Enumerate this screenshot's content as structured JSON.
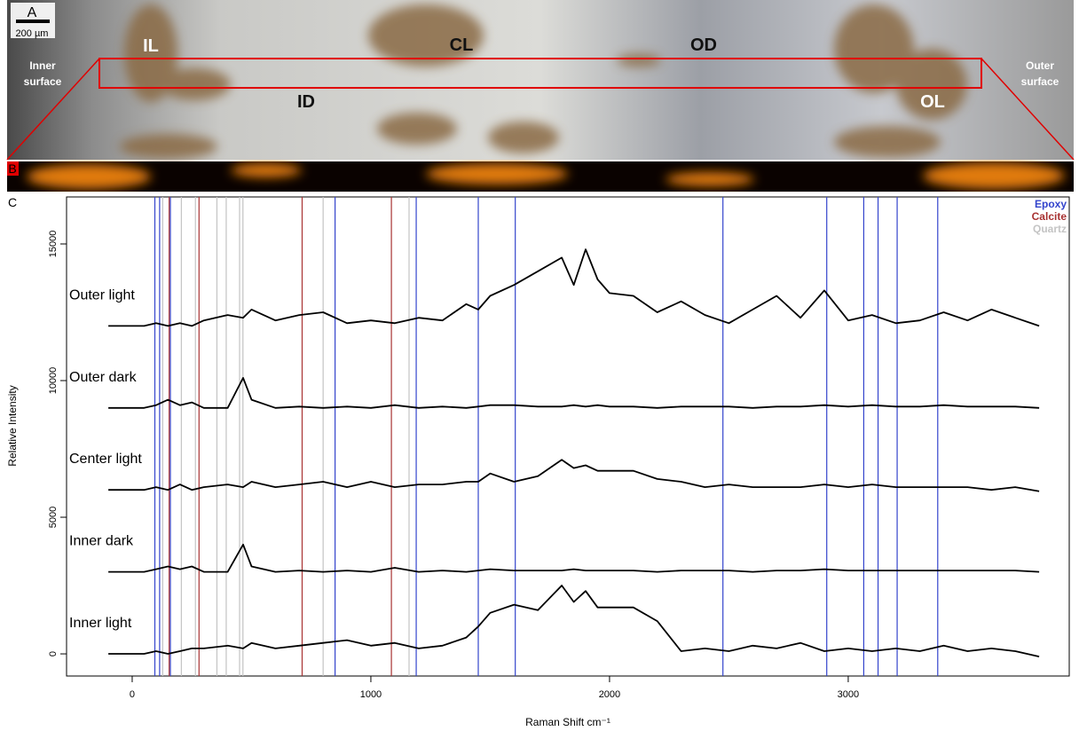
{
  "figure": {
    "panel_a": {
      "label": "A",
      "scale_bar": "200 µm",
      "regions": [
        "IL",
        "CL",
        "OD",
        "ID",
        "OL"
      ],
      "inner_surface": [
        "Inner",
        "surface"
      ],
      "outer_surface": [
        "Outer",
        "surface"
      ]
    },
    "panel_b": {
      "label": "B"
    },
    "panel_c": {
      "label": "C"
    }
  },
  "chart_data": {
    "type": "line",
    "x_label": "Raman Shift cm⁻¹",
    "y_label": "Relative Intensity",
    "xlim": [
      -275,
      3926
    ],
    "ylim": [
      -810,
      16720
    ],
    "xticks": [
      0,
      1000,
      2000,
      3000
    ],
    "yticks": [
      0,
      5000,
      10000,
      15000
    ],
    "x": [
      -100,
      0,
      50,
      100,
      150,
      200,
      250,
      300,
      400,
      465,
      500,
      600,
      700,
      800,
      900,
      1000,
      1100,
      1200,
      1300,
      1400,
      1450,
      1500,
      1600,
      1700,
      1800,
      1850,
      1900,
      1950,
      2000,
      2100,
      2200,
      2300,
      2400,
      2500,
      2600,
      2700,
      2800,
      2900,
      3000,
      3100,
      3200,
      3300,
      3400,
      3500,
      3600,
      3700,
      3800
    ],
    "series": [
      {
        "name": "Outer light",
        "color": "#000000",
        "values": [
          12000,
          12000,
          12000,
          12100,
          12000,
          12100,
          12000,
          12200,
          12400,
          12300,
          12600,
          12200,
          12400,
          12500,
          12100,
          12200,
          12100,
          12300,
          12200,
          12800,
          12600,
          13100,
          13500,
          14000,
          14500,
          13500,
          14800,
          13700,
          13200,
          13100,
          12500,
          12900,
          12400,
          12100,
          12600,
          13100,
          12300,
          13300,
          12200,
          12400,
          12100,
          12200,
          12500,
          12200,
          12600,
          12300,
          12000
        ]
      },
      {
        "name": "Outer dark",
        "color": "#000000",
        "values": [
          9000,
          9000,
          9000,
          9100,
          9300,
          9100,
          9200,
          9000,
          9000,
          10100,
          9300,
          9000,
          9050,
          9000,
          9050,
          9000,
          9100,
          9000,
          9050,
          9000,
          9050,
          9100,
          9100,
          9050,
          9050,
          9100,
          9050,
          9100,
          9050,
          9050,
          9000,
          9050,
          9050,
          9050,
          9000,
          9050,
          9050,
          9100,
          9050,
          9100,
          9050,
          9050,
          9100,
          9050,
          9050,
          9050,
          9000
        ]
      },
      {
        "name": "Center light",
        "color": "#000000",
        "values": [
          6000,
          6000,
          6000,
          6100,
          6000,
          6200,
          6000,
          6100,
          6200,
          6100,
          6300,
          6100,
          6200,
          6300,
          6100,
          6300,
          6100,
          6200,
          6200,
          6300,
          6300,
          6600,
          6300,
          6500,
          7100,
          6800,
          6900,
          6700,
          6700,
          6700,
          6400,
          6300,
          6100,
          6200,
          6100,
          6100,
          6100,
          6200,
          6100,
          6200,
          6100,
          6100,
          6100,
          6100,
          6000,
          6100,
          5950
        ]
      },
      {
        "name": "Inner dark",
        "color": "#000000",
        "values": [
          3000,
          3000,
          3000,
          3100,
          3200,
          3100,
          3200,
          3000,
          3000,
          4000,
          3200,
          3000,
          3050,
          3000,
          3050,
          3000,
          3150,
          3000,
          3050,
          3000,
          3050,
          3100,
          3050,
          3050,
          3050,
          3100,
          3050,
          3050,
          3050,
          3050,
          3000,
          3050,
          3050,
          3050,
          3000,
          3050,
          3050,
          3100,
          3050,
          3050,
          3050,
          3050,
          3050,
          3050,
          3050,
          3050,
          3000
        ]
      },
      {
        "name": "Inner light",
        "color": "#000000",
        "values": [
          0,
          0,
          0,
          100,
          0,
          100,
          200,
          200,
          300,
          200,
          400,
          200,
          300,
          400,
          500,
          300,
          400,
          200,
          300,
          600,
          1000,
          1500,
          1800,
          1600,
          2500,
          1900,
          2300,
          1700,
          1700,
          1700,
          1200,
          100,
          200,
          100,
          300,
          200,
          400,
          100,
          200,
          100,
          200,
          100,
          300,
          100,
          200,
          100,
          -100
        ]
      }
    ],
    "reference_lines": [
      {
        "name": "Epoxy",
        "color": "#3344cc",
        "x": [
          95,
          115,
          160,
          850,
          1190,
          1450,
          1605,
          2475,
          2910,
          3065,
          3125,
          3205,
          3375
        ]
      },
      {
        "name": "Calcite",
        "color": "#a83232",
        "x": [
          155,
          280,
          712,
          1086
        ]
      },
      {
        "name": "Quartz",
        "color": "#c4c4c4",
        "x": [
          128,
          206,
          265,
          355,
          394,
          450,
          464,
          800,
          1160
        ]
      }
    ]
  }
}
